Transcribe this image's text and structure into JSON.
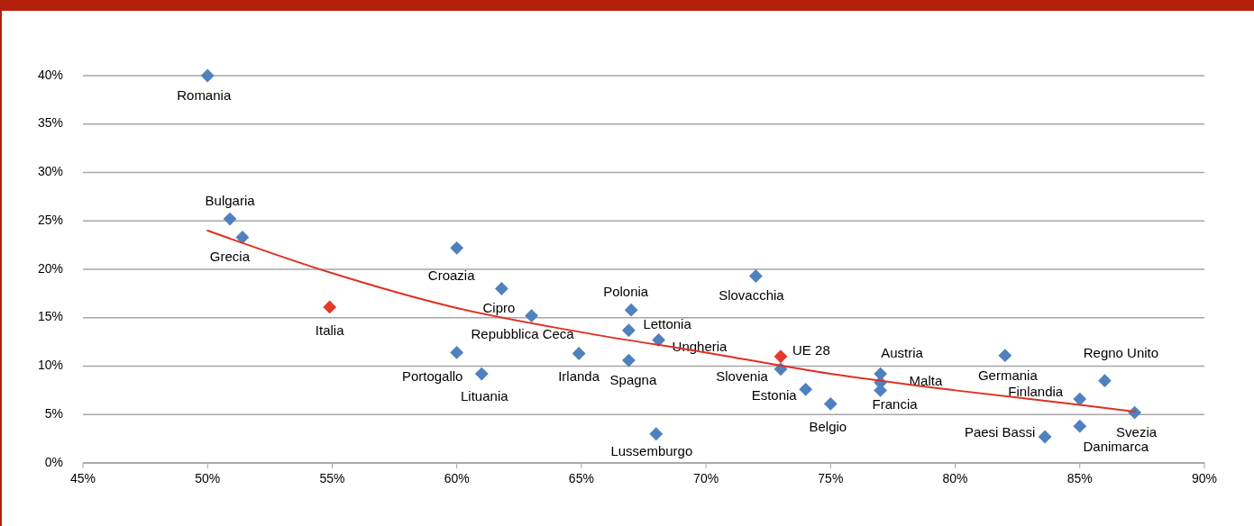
{
  "chart_data": {
    "type": "scatter",
    "marker": "diamond",
    "grid": "y",
    "xlim": [
      45,
      90
    ],
    "ylim": [
      0,
      40
    ],
    "xticks": [
      {
        "value": 45,
        "label": "45%"
      },
      {
        "value": 50,
        "label": "50%"
      },
      {
        "value": 55,
        "label": "55%"
      },
      {
        "value": 60,
        "label": "60%"
      },
      {
        "value": 65,
        "label": "65%"
      },
      {
        "value": 70,
        "label": "70%"
      },
      {
        "value": 75,
        "label": "75%"
      },
      {
        "value": 80,
        "label": "80%"
      },
      {
        "value": 85,
        "label": "85%"
      },
      {
        "value": 90,
        "label": "90%"
      }
    ],
    "yticks": [
      {
        "value": 0,
        "label": "0%"
      },
      {
        "value": 5,
        "label": "5%"
      },
      {
        "value": 10,
        "label": "10%"
      },
      {
        "value": 15,
        "label": "15%"
      },
      {
        "value": 20,
        "label": "20%"
      },
      {
        "value": 25,
        "label": "25%"
      },
      {
        "value": 30,
        "label": "30%"
      },
      {
        "value": 35,
        "label": "35%"
      },
      {
        "value": 40,
        "label": "40%"
      }
    ],
    "series": [
      {
        "name": "Romania",
        "color": "#4f81bd",
        "x": [
          50
        ],
        "values": [
          40
        ]
      },
      {
        "name": "Bulgaria",
        "color": "#4f81bd",
        "x": [
          50.9
        ],
        "values": [
          25.2
        ]
      },
      {
        "name": "Grecia",
        "color": "#4f81bd",
        "x": [
          51.4
        ],
        "values": [
          23.3
        ]
      },
      {
        "name": "Italia",
        "color": "#e8382b",
        "x": [
          54.9
        ],
        "values": [
          16.1
        ]
      },
      {
        "name": "Croazia",
        "color": "#4f81bd",
        "x": [
          60
        ],
        "values": [
          22.2
        ]
      },
      {
        "name": "Portogallo",
        "color": "#4f81bd",
        "x": [
          60
        ],
        "values": [
          11.4
        ]
      },
      {
        "name": "Lituania",
        "color": "#4f81bd",
        "x": [
          61
        ],
        "values": [
          9.2
        ]
      },
      {
        "name": "Cipro",
        "color": "#4f81bd",
        "x": [
          61.8
        ],
        "values": [
          18
        ]
      },
      {
        "name": "Repubblica Ceca",
        "color": "#4f81bd",
        "x": [
          63
        ],
        "values": [
          15.2
        ]
      },
      {
        "name": "Irlanda",
        "color": "#4f81bd",
        "x": [
          64.9
        ],
        "values": [
          11.3
        ]
      },
      {
        "name": "Polonia",
        "color": "#4f81bd",
        "x": [
          67
        ],
        "values": [
          15.8
        ]
      },
      {
        "name": "Lettonia",
        "color": "#4f81bd",
        "x": [
          66.9
        ],
        "values": [
          13.7
        ]
      },
      {
        "name": "Ungheria",
        "color": "#4f81bd",
        "x": [
          68.1
        ],
        "values": [
          12.7
        ]
      },
      {
        "name": "Spagna",
        "color": "#4f81bd",
        "x": [
          66.9
        ],
        "values": [
          10.6
        ]
      },
      {
        "name": "Lussemburgo",
        "color": "#4f81bd",
        "x": [
          68
        ],
        "values": [
          3
        ]
      },
      {
        "name": "Slovacchia",
        "color": "#4f81bd",
        "x": [
          72
        ],
        "values": [
          19.3
        ]
      },
      {
        "name": "UE 28",
        "color": "#e8382b",
        "x": [
          73
        ],
        "values": [
          11
        ]
      },
      {
        "name": "Slovenia",
        "color": "#4f81bd",
        "x": [
          73
        ],
        "values": [
          9.7
        ]
      },
      {
        "name": "Estonia",
        "color": "#4f81bd",
        "x": [
          74
        ],
        "values": [
          7.6
        ]
      },
      {
        "name": "Belgio",
        "color": "#4f81bd",
        "x": [
          75
        ],
        "values": [
          6.1
        ]
      },
      {
        "name": "Austria",
        "color": "#4f81bd",
        "x": [
          77
        ],
        "values": [
          9.2
        ]
      },
      {
        "name": "Malta",
        "color": "#4f81bd",
        "x": [
          77
        ],
        "values": [
          8.3
        ]
      },
      {
        "name": "Francia",
        "color": "#4f81bd",
        "x": [
          77
        ],
        "values": [
          7.5
        ]
      },
      {
        "name": "Germania",
        "color": "#4f81bd",
        "x": [
          82
        ],
        "values": [
          11.1
        ]
      },
      {
        "name": "Paesi Bassi",
        "color": "#4f81bd",
        "x": [
          83.6
        ],
        "values": [
          2.7
        ]
      },
      {
        "name": "Finlandia",
        "color": "#4f81bd",
        "x": [
          85
        ],
        "values": [
          6.6
        ]
      },
      {
        "name": "Danimarca",
        "color": "#4f81bd",
        "x": [
          85
        ],
        "values": [
          3.8
        ]
      },
      {
        "name": "Regno Unito",
        "color": "#4f81bd",
        "x": [
          86
        ],
        "values": [
          8.5
        ]
      },
      {
        "name": "Svezia",
        "color": "#4f81bd",
        "x": [
          87.2
        ],
        "values": [
          5.2
        ]
      },
      {
        "type": "line",
        "marker": "none",
        "color": "#e03020",
        "x": [
          50,
          55,
          60,
          65,
          70,
          75,
          80,
          85,
          87.2
        ],
        "values": [
          24,
          19.6,
          16,
          13.5,
          11.4,
          9.2,
          7.5,
          6,
          5.3
        ]
      }
    ]
  }
}
